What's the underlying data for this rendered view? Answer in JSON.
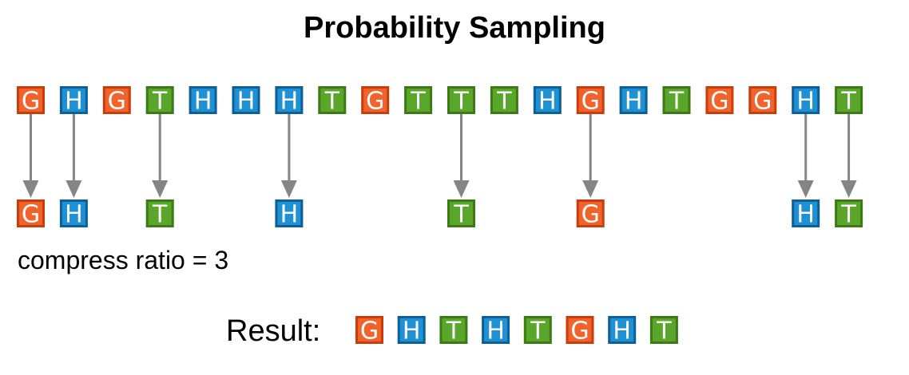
{
  "title": "Probability Sampling",
  "colors": {
    "G": {
      "fill": "#f2622b",
      "stroke": "#c93d0a"
    },
    "H": {
      "fill": "#1e90d4",
      "stroke": "#0d5f96"
    },
    "T": {
      "fill": "#5aa62a",
      "stroke": "#3b7a14"
    },
    "arrow": "#858585"
  },
  "sequence": [
    "G",
    "H",
    "G",
    "T",
    "H",
    "H",
    "H",
    "T",
    "G",
    "T",
    "T",
    "T",
    "H",
    "G",
    "H",
    "T",
    "G",
    "G",
    "H",
    "T"
  ],
  "sampled_indices": [
    0,
    1,
    3,
    6,
    10,
    13,
    18,
    19
  ],
  "ratio_text": "compress ratio = 3",
  "result_label": "Result:",
  "result": [
    "G",
    "H",
    "T",
    "H",
    "T",
    "G",
    "H",
    "T"
  ]
}
